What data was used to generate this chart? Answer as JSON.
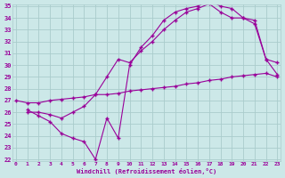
{
  "line1_x": [
    0,
    1,
    2,
    3,
    4,
    5,
    6,
    7,
    8,
    9,
    10,
    11,
    12,
    13,
    14,
    15,
    16,
    17,
    18,
    19,
    20,
    21,
    22,
    23
  ],
  "line1_y": [
    27.0,
    26.8,
    26.8,
    27.0,
    27.1,
    27.2,
    27.3,
    27.5,
    27.5,
    27.6,
    27.8,
    27.9,
    28.0,
    28.1,
    28.2,
    28.4,
    28.5,
    28.7,
    28.8,
    29.0,
    29.1,
    29.2,
    29.3,
    29.0
  ],
  "line2_x": [
    1,
    2,
    3,
    4,
    5,
    6,
    7,
    8,
    9,
    10,
    11,
    12,
    13,
    14,
    15,
    16,
    17,
    18,
    19,
    20,
    21,
    22,
    23
  ],
  "line2_y": [
    26.2,
    25.7,
    25.2,
    24.2,
    23.8,
    23.5,
    22.0,
    25.5,
    23.8,
    30.0,
    31.5,
    32.5,
    33.8,
    34.5,
    34.8,
    35.0,
    35.5,
    35.0,
    34.8,
    34.0,
    33.5,
    30.5,
    30.2
  ],
  "line3_x": [
    1,
    2,
    3,
    4,
    5,
    6,
    7,
    8,
    9,
    10,
    11,
    12,
    13,
    14,
    15,
    16,
    17,
    18,
    19,
    20,
    21,
    22,
    23
  ],
  "line3_y": [
    26.0,
    26.0,
    25.8,
    25.5,
    26.0,
    26.5,
    27.5,
    29.0,
    30.5,
    30.2,
    31.2,
    32.0,
    33.0,
    33.8,
    34.5,
    34.8,
    35.2,
    34.5,
    34.0,
    34.0,
    33.8,
    30.5,
    29.2
  ],
  "color": "#990099",
  "bg_color": "#cce8e8",
  "grid_color": "#aacccc",
  "xlabel": "Windchill (Refroidissement éolien,°C)",
  "ylim": [
    22,
    35
  ],
  "xlim": [
    0,
    23
  ],
  "yticks": [
    22,
    23,
    24,
    25,
    26,
    27,
    28,
    29,
    30,
    31,
    32,
    33,
    34,
    35
  ],
  "xticks": [
    0,
    1,
    2,
    3,
    4,
    5,
    6,
    7,
    8,
    9,
    10,
    11,
    12,
    13,
    14,
    15,
    16,
    17,
    18,
    19,
    20,
    21,
    22,
    23
  ],
  "marker": "+"
}
